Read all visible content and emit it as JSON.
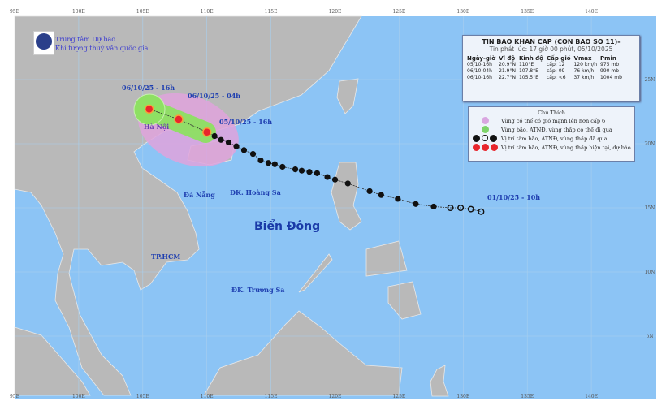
{
  "header": {
    "org_line1": "Trung tâm Dự báo",
    "org_line2": "Khí tượng thuỷ văn quốc gia"
  },
  "bulletin": {
    "title": "TIN BAO KHAN CAP (CON BAO SO 11)-",
    "issued": "Tin phát lúc: 17 giờ 00 phút, 05/10/2025",
    "columns": [
      "Ngày-giờ",
      "Vĩ độ",
      "Kinh độ",
      "Cấp gió",
      "Vmax",
      "Pmin"
    ],
    "rows": [
      [
        "05/10-16h",
        "20.9°N",
        "110°E",
        "cấp: 12",
        "120 km/h",
        "975 mb"
      ],
      [
        "06/10-04h",
        "21.9°N",
        "107.8°E",
        "cấp: 09",
        "76 km/h",
        "990 mb"
      ],
      [
        "06/10-16h",
        "22.7°N",
        "105.5°E",
        "cấp: <6",
        "37 km/h",
        "1004 mb"
      ]
    ]
  },
  "legend": {
    "title": "Chú Thích",
    "items": [
      {
        "text": "Vùng có thể có gió mạnh lên hơn cấp 6",
        "color": "#d9a6e0"
      },
      {
        "text": "Vùng bão, ATNĐ, vùng thấp có thể đi qua",
        "color": "#7ed36a"
      },
      {
        "text": "Vị trí tâm bão, ATNĐ, vùng thấp đã qua",
        "color": "#111111"
      },
      {
        "text": "Vị trí tâm bão, ATNĐ, vùng thấp hiện tại, dự báo",
        "color": "#e8262c"
      }
    ]
  },
  "map": {
    "lon_ticks": [
      "95E",
      "100E",
      "105E",
      "110E",
      "115E",
      "120E",
      "125E",
      "130E",
      "135E",
      "140E"
    ],
    "lat_ticks": [
      "25N",
      "20N",
      "15N",
      "10N",
      "5N"
    ],
    "sea_color": "#8cc4f5",
    "land_color": "#b9b9b9",
    "places": {
      "hanoi": "Hà Nội",
      "danang": "Đà Nẵng",
      "hoangsa": "ĐK. Hoàng Sa",
      "truongsa": "ĐK. Trường Sa",
      "hcm": "TP.HCM",
      "sea": "Biển Đông"
    },
    "track_labels": {
      "f2": "06/10/25 - 16h",
      "f1": "06/10/25 - 04h",
      "now": "05/10/25 - 16h",
      "start": "01/10/25 - 10h"
    },
    "track": {
      "forecast": [
        [
          105.5,
          22.7
        ],
        [
          107.8,
          21.9
        ]
      ],
      "current": [
        110.0,
        20.9
      ],
      "past": [
        [
          110.6,
          20.6
        ],
        [
          111.1,
          20.3
        ],
        [
          111.7,
          20.1
        ],
        [
          112.3,
          19.8
        ],
        [
          112.9,
          19.5
        ],
        [
          113.6,
          19.2
        ],
        [
          114.2,
          18.7
        ],
        [
          114.8,
          18.5
        ],
        [
          115.3,
          18.4
        ],
        [
          115.9,
          18.2
        ],
        [
          116.9,
          18.0
        ],
        [
          117.4,
          17.9
        ],
        [
          118.0,
          17.8
        ],
        [
          118.6,
          17.7
        ],
        [
          119.4,
          17.4
        ],
        [
          120.0,
          17.2
        ],
        [
          121.0,
          16.9
        ],
        [
          122.7,
          16.3
        ],
        [
          123.6,
          16.0
        ],
        [
          124.9,
          15.7
        ],
        [
          126.3,
          15.3
        ],
        [
          127.7,
          15.1
        ]
      ],
      "past_open": [
        [
          129.0,
          15.0
        ],
        [
          129.8,
          15.0
        ],
        [
          130.6,
          14.9
        ],
        [
          131.4,
          14.7
        ]
      ]
    }
  }
}
